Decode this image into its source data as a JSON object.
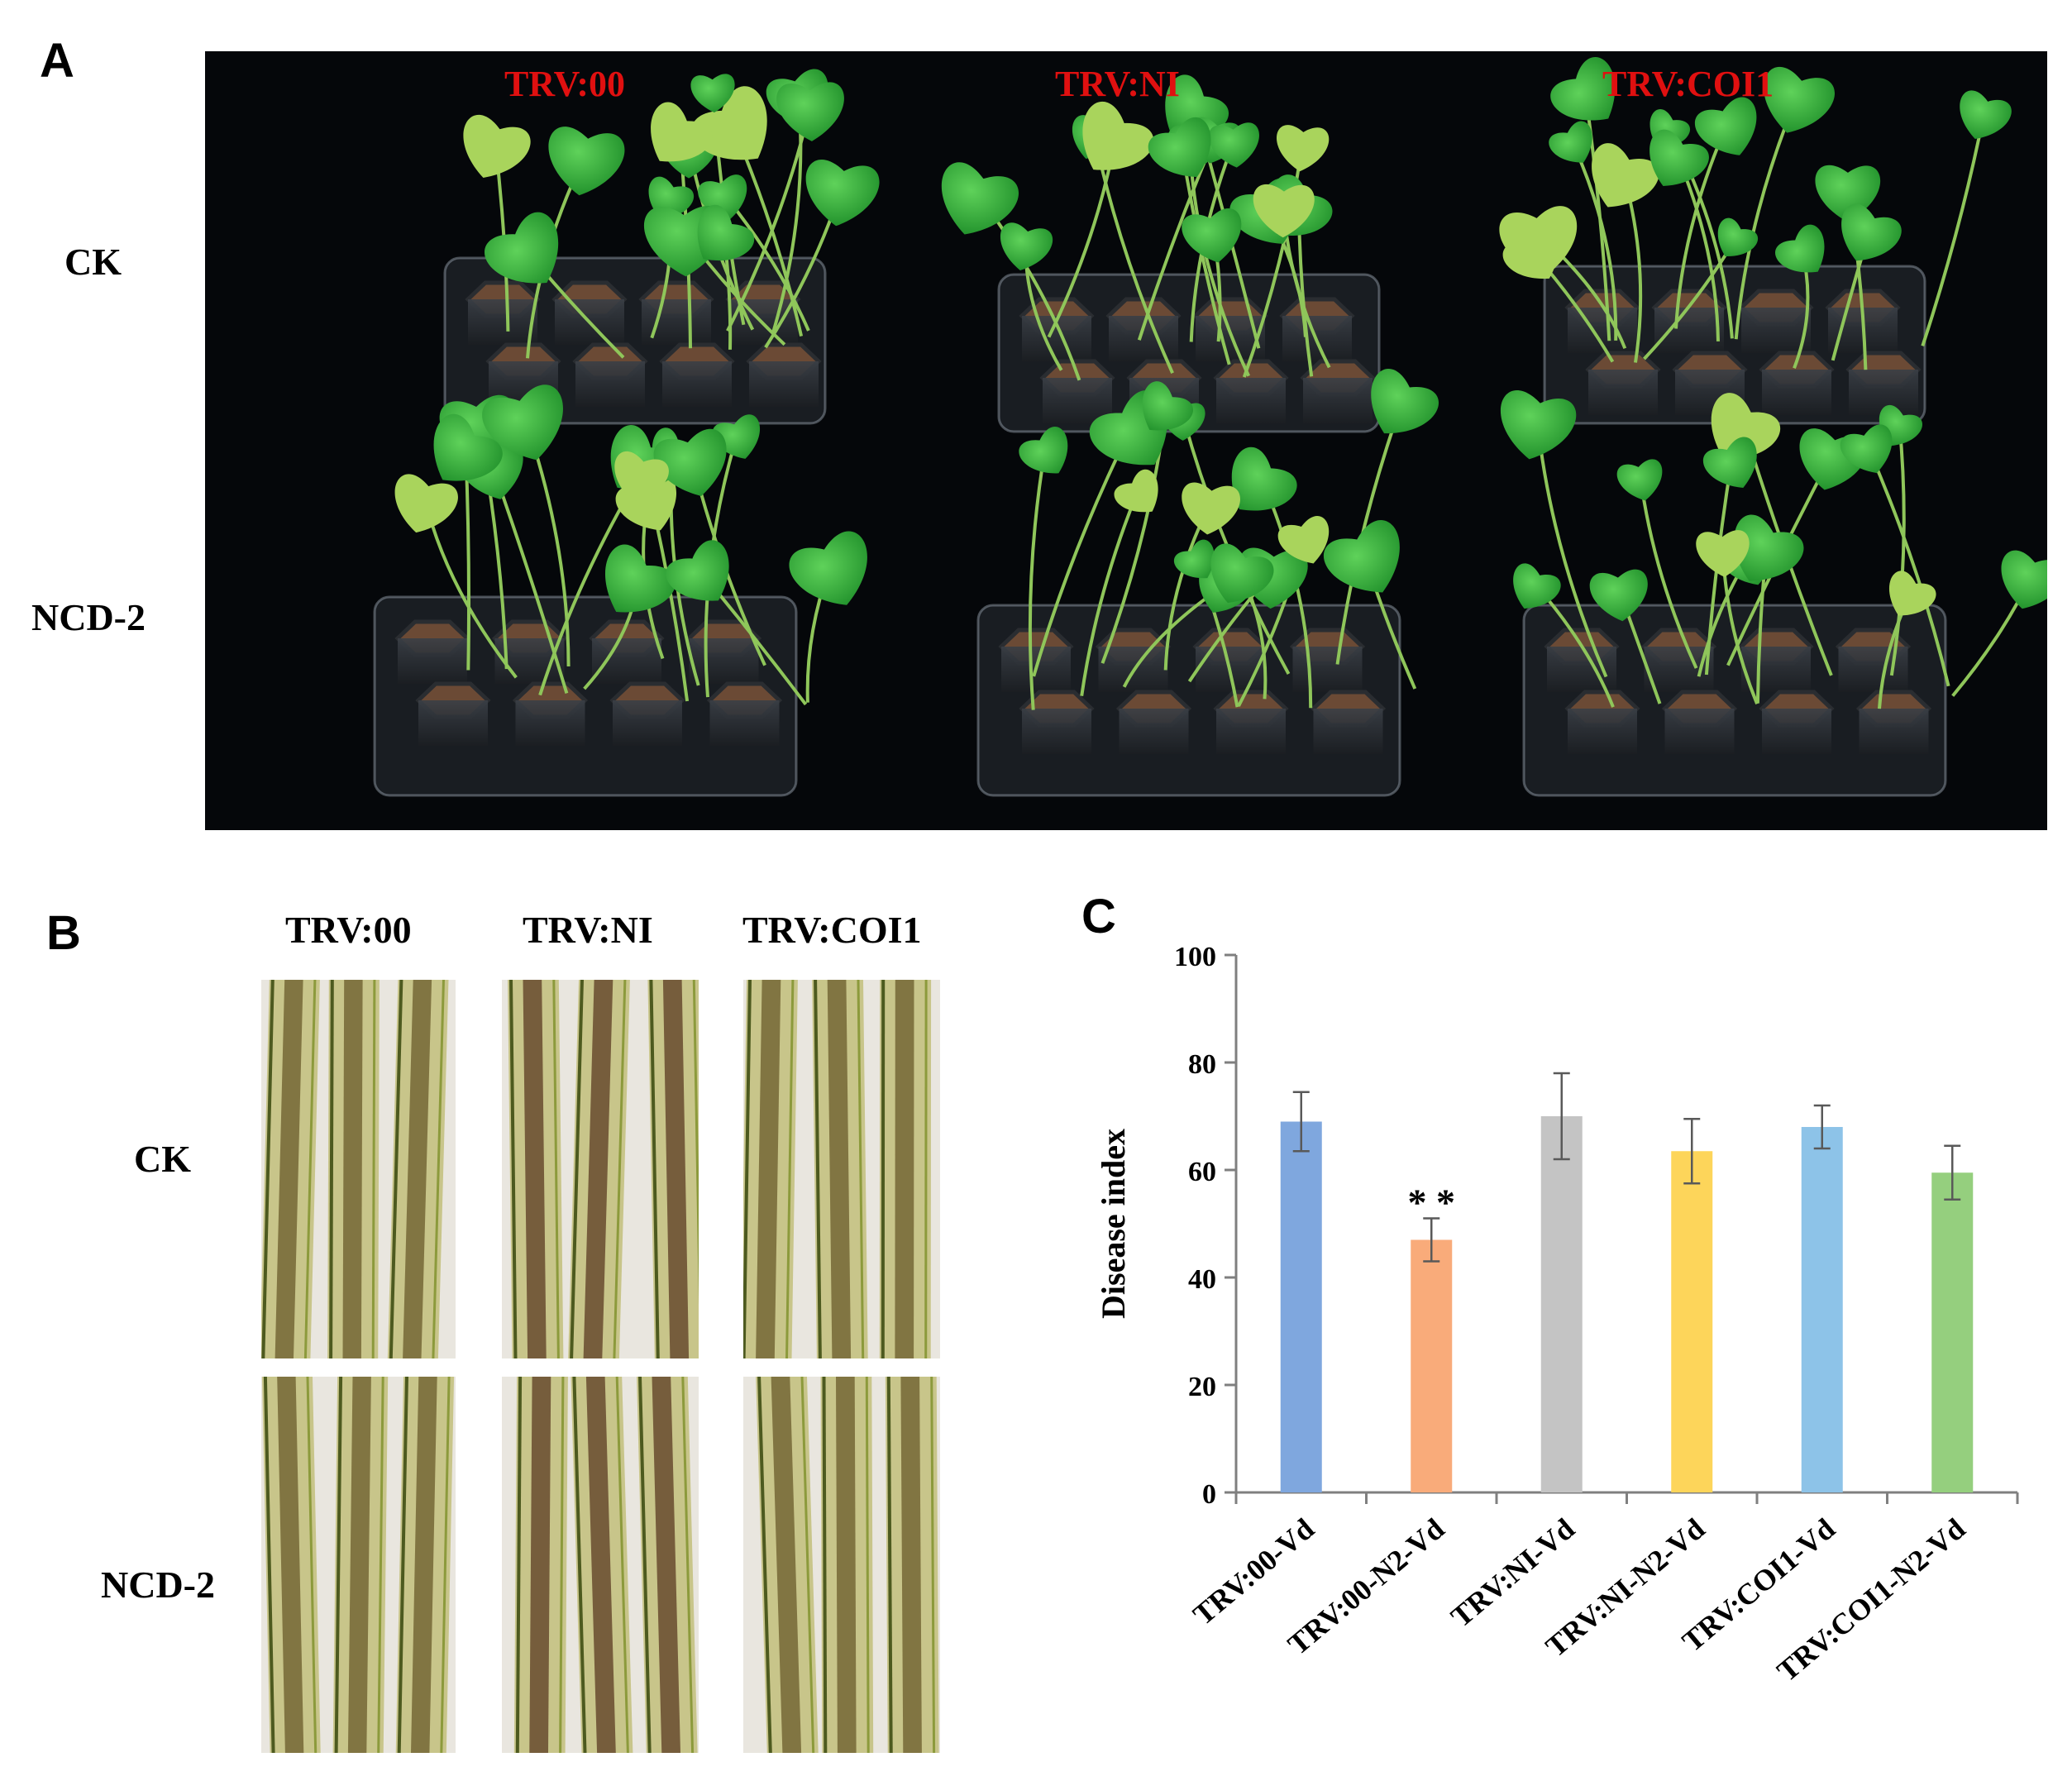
{
  "panelA": {
    "letter": "A",
    "columns": [
      "TRV:00",
      "TRV:NI",
      "TRV:COI1"
    ],
    "rows": [
      "CK",
      "NCD-2"
    ]
  },
  "panelB": {
    "letter": "B",
    "columns": [
      "TRV:00",
      "TRV:NI",
      "TRV:COI1"
    ],
    "rows": [
      "CK",
      "NCD-2"
    ]
  },
  "panelC": {
    "letter": "C"
  },
  "chart_data": {
    "type": "bar",
    "categories": [
      "TRV:00-Vd",
      "TRV:00-N2-Vd",
      "TRV:NI-Vd",
      "TRV:NI-N2-Vd",
      "TRV:COI1-Vd",
      "TRV:COI1-N2-Vd"
    ],
    "values": [
      69,
      47,
      70,
      63.5,
      68,
      59.5
    ],
    "errors": [
      5.5,
      4,
      8,
      6,
      4,
      5
    ],
    "colors": [
      "#7fa7de",
      "#f9ab7a",
      "#c4c4c4",
      "#fdd55a",
      "#8dc3e8",
      "#95cf7e"
    ],
    "annotations": [
      {
        "category": "TRV:00-N2-Vd",
        "text": "* *"
      }
    ],
    "ylabel": "Disease index",
    "ylim": [
      0,
      100
    ],
    "yticks": [
      0,
      20,
      40,
      60,
      80,
      100
    ],
    "grid": false
  }
}
